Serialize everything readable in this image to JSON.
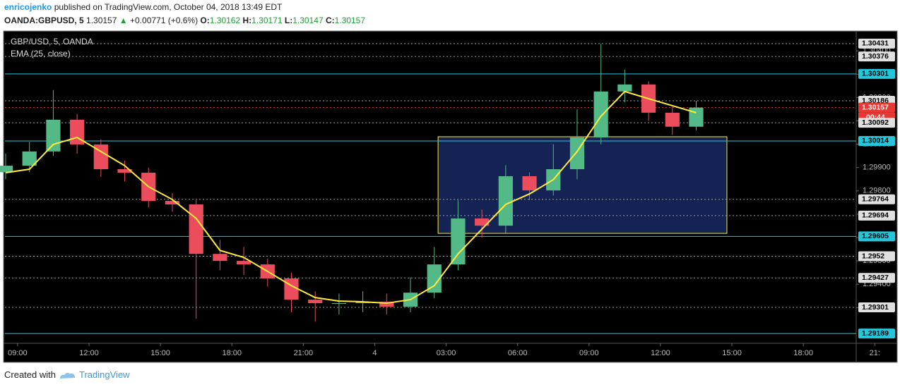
{
  "header": {
    "author": "enricojenko",
    "published": "published on TradingView.com, October 04, 2018 13:49 EDT",
    "symbol": "OANDA:GBPUSD, 5",
    "last": 1.30157,
    "change": "+0.00771 (+0.6%)",
    "open_label": "O:",
    "open": 1.30162,
    "high_label": "H:",
    "high": 1.30171,
    "low_label": "L:",
    "low": 1.30147,
    "close_label": "C:",
    "close": 1.30157
  },
  "chart_data": {
    "type": "candlestick",
    "title": "GBP/USD, 5, OANDA",
    "countdown": "00:44",
    "up_color": "#53b987",
    "down_color": "#eb4d5c",
    "x": [
      8.5,
      9.5,
      10.5,
      11.5,
      12.5,
      13.5,
      14.5,
      15.5,
      16.5,
      17.5,
      18.5,
      19.5,
      20.5,
      21.5,
      22.5,
      23.5,
      24.5,
      25.5,
      26.5,
      27.5,
      28.5,
      29.5,
      30.5,
      31.5,
      32.5,
      33.5,
      34.5,
      35.5,
      36.5,
      37.5
    ],
    "open": [
      1.2988,
      1.29908,
      1.29969,
      1.30105,
      1.29999,
      1.29893,
      1.29878,
      1.29757,
      1.29742,
      1.2953,
      1.295,
      1.29485,
      1.29425,
      1.29334,
      1.29319,
      1.29319,
      1.29325,
      1.29304,
      1.29364,
      1.29485,
      1.29682,
      1.29651,
      1.29863,
      1.29802,
      1.29893,
      1.30029,
      1.30226,
      1.30256,
      1.30135,
      1.30075
    ],
    "high": [
      1.2996,
      1.3001,
      1.30232,
      1.3013,
      1.3002,
      1.2993,
      1.299,
      1.2979,
      1.2976,
      1.2959,
      1.2956,
      1.2951,
      1.2945,
      1.2937,
      1.2936,
      1.2937,
      1.2936,
      1.2943,
      1.2956,
      1.2976,
      1.2972,
      1.2991,
      1.2988,
      1.3,
      1.3015,
      1.30431,
      1.3032,
      1.3027,
      1.3016,
      1.30186
    ],
    "low": [
      1.2985,
      1.2988,
      1.2995,
      1.2996,
      1.2986,
      1.2984,
      1.2973,
      1.2971,
      1.29252,
      1.2946,
      1.2944,
      1.2939,
      1.2928,
      1.2924,
      1.2927,
      1.2928,
      1.2927,
      1.2928,
      1.2934,
      1.2946,
      1.296,
      1.2962,
      1.2976,
      1.2978,
      1.2985,
      1.3,
      1.3018,
      1.301,
      1.3004,
      1.3006
    ],
    "close": [
      1.29908,
      1.29969,
      1.30105,
      1.29999,
      1.29893,
      1.29878,
      1.29757,
      1.29742,
      1.2953,
      1.295,
      1.29485,
      1.29425,
      1.29334,
      1.29319,
      1.29319,
      1.29325,
      1.29304,
      1.29364,
      1.29485,
      1.29682,
      1.29651,
      1.29863,
      1.29802,
      1.29893,
      1.30029,
      1.30226,
      1.30256,
      1.30135,
      1.30075,
      1.30157
    ],
    "ema": {
      "name": "EMA (25, close)",
      "color": "#ffeb3b",
      "values": [
        1.29878,
        1.29893,
        1.29999,
        1.30029,
        1.29969,
        1.29908,
        1.29818,
        1.29763,
        1.29682,
        1.29545,
        1.29515,
        1.29455,
        1.29394,
        1.29343,
        1.29328,
        1.29325,
        1.29319,
        1.29334,
        1.29394,
        1.2953,
        1.29636,
        1.29742,
        1.29787,
        1.29848,
        1.29969,
        1.3012,
        1.30226,
        1.30195,
        1.30165,
        1.30135
      ]
    },
    "rectangle": {
      "x": [
        26.66,
        38.79
      ],
      "y": [
        1.29618,
        1.30032
      ],
      "color": "#ffeb3b"
    },
    "levels": [
      {
        "value": 1.30431,
        "color": "#9e9e9e"
      },
      {
        "value": 1.30376,
        "color": "#9e9e9e"
      },
      {
        "value": 1.30301,
        "color": "#26c6da"
      },
      {
        "value": 1.30186,
        "color": "#9e9e9e"
      },
      {
        "value": 1.30157,
        "color": "#e53935"
      },
      {
        "value": 1.30092,
        "color": "#9e9e9e"
      },
      {
        "value": 1.30014,
        "color": "#26c6da"
      },
      {
        "value": 1.29764,
        "color": "#9e9e9e"
      },
      {
        "value": 1.29694,
        "color": "#9e9e9e"
      },
      {
        "value": 1.29605,
        "color": "#26c6da"
      },
      {
        "value": 1.2952,
        "color": "#9e9e9e"
      },
      {
        "value": 1.29427,
        "color": "#9e9e9e"
      },
      {
        "value": 1.29301,
        "color": "#9e9e9e"
      },
      {
        "value": 1.29189,
        "color": "#26c6da"
      }
    ],
    "xlim": [
      8.47,
      44.22
    ],
    "ylim": [
      1.29147,
      1.30485
    ],
    "xticks": [
      {
        "value": 9,
        "label": "09:00"
      },
      {
        "value": 12,
        "label": "12:00"
      },
      {
        "value": 15,
        "label": "15:00"
      },
      {
        "value": 18,
        "label": "18:00"
      },
      {
        "value": 21,
        "label": "21:00"
      },
      {
        "value": 24,
        "label": "4"
      },
      {
        "value": 27,
        "label": "03:00"
      },
      {
        "value": 30,
        "label": "06:00"
      },
      {
        "value": 33,
        "label": "09:00"
      },
      {
        "value": 36,
        "label": "12:00"
      },
      {
        "value": 39,
        "label": "15:00"
      },
      {
        "value": 42,
        "label": "18:00"
      },
      {
        "value": 45,
        "label": "21:"
      }
    ],
    "yticks": [
      {
        "value": 1.293,
        "label": "1.29300"
      },
      {
        "value": 1.294,
        "label": "1.29400"
      },
      {
        "value": 1.295,
        "label": "1.29500"
      },
      {
        "value": 1.296,
        "label": "1.29600"
      },
      {
        "value": 1.297,
        "label": "1.29700"
      },
      {
        "value": 1.298,
        "label": "1.29800"
      },
      {
        "value": 1.299,
        "label": "1.29900"
      },
      {
        "value": 1.3,
        "label": "1.30000"
      },
      {
        "value": 1.301,
        "label": "1.30100"
      },
      {
        "value": 1.302,
        "label": "1.30200"
      },
      {
        "value": 1.303,
        "label": "1.30300"
      },
      {
        "value": 1.304,
        "label": "1.30400"
      }
    ]
  },
  "footer": {
    "created": "Created with",
    "brand": "TradingView"
  }
}
